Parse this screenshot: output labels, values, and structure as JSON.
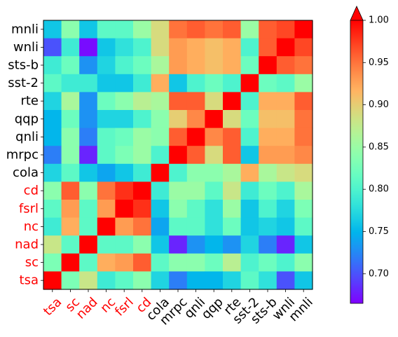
{
  "chart_data": {
    "type": "heatmap",
    "title": "",
    "xlabel": "",
    "ylabel": "",
    "grid": false,
    "x_labels": [
      "tsa",
      "sc",
      "nad",
      "nc",
      "fsrl",
      "cd",
      "cola",
      "mrpc",
      "qnli",
      "qqp",
      "rte",
      "sst-2",
      "sts-b",
      "wnli",
      "mnli"
    ],
    "y_labels": [
      "mnli",
      "wnli",
      "sts-b",
      "sst-2",
      "rte",
      "qqp",
      "qnli",
      "mrpc",
      "cola",
      "cd",
      "fsrl",
      "nc",
      "nad",
      "sc",
      "tsa"
    ],
    "label_colors": {
      "tsa": "#ff0000",
      "sc": "#ff0000",
      "nad": "#ff0000",
      "nc": "#ff0000",
      "fsrl": "#ff0000",
      "cd": "#ff0000",
      "cola": "#000000",
      "mrpc": "#000000",
      "qnli": "#000000",
      "qqp": "#000000",
      "rte": "#000000",
      "sst-2": "#000000",
      "sts-b": "#000000",
      "wnli": "#000000",
      "mnli": "#000000"
    },
    "values": [
      [
        0.76,
        0.84,
        0.76,
        0.81,
        0.81,
        0.85,
        0.89,
        0.95,
        0.96,
        0.95,
        0.96,
        0.85,
        0.96,
        0.97,
        1.0
      ],
      [
        0.7,
        0.79,
        0.67,
        0.76,
        0.78,
        0.8,
        0.89,
        0.93,
        0.92,
        0.91,
        0.92,
        0.8,
        0.96,
        1.0,
        0.97
      ],
      [
        0.79,
        0.82,
        0.73,
        0.77,
        0.8,
        0.82,
        0.86,
        0.93,
        0.92,
        0.91,
        0.92,
        0.82,
        1.0,
        0.96,
        0.95
      ],
      [
        0.81,
        0.79,
        0.79,
        0.76,
        0.76,
        0.79,
        0.92,
        0.76,
        0.8,
        0.82,
        0.8,
        1.0,
        0.82,
        0.81,
        0.85
      ],
      [
        0.77,
        0.86,
        0.73,
        0.82,
        0.84,
        0.87,
        0.86,
        0.96,
        0.96,
        0.89,
        1.0,
        0.8,
        0.92,
        0.92,
        0.96
      ],
      [
        0.75,
        0.82,
        0.73,
        0.77,
        0.77,
        0.8,
        0.84,
        0.9,
        0.94,
        1.0,
        0.89,
        0.82,
        0.91,
        0.91,
        0.95
      ],
      [
        0.75,
        0.84,
        0.72,
        0.81,
        0.82,
        0.85,
        0.84,
        0.96,
        1.0,
        0.94,
        0.96,
        0.8,
        0.92,
        0.92,
        0.95
      ],
      [
        0.72,
        0.84,
        0.68,
        0.81,
        0.83,
        0.85,
        0.8,
        1.0,
        0.96,
        0.89,
        0.96,
        0.76,
        0.93,
        0.93,
        0.94
      ],
      [
        0.77,
        0.81,
        0.76,
        0.74,
        0.76,
        0.79,
        1.0,
        0.8,
        0.84,
        0.84,
        0.86,
        0.92,
        0.86,
        0.88,
        0.89
      ],
      [
        0.84,
        0.96,
        0.84,
        0.95,
        0.98,
        1.0,
        0.79,
        0.85,
        0.85,
        0.81,
        0.88,
        0.79,
        0.82,
        0.8,
        0.86
      ],
      [
        0.81,
        0.93,
        0.81,
        0.93,
        1.0,
        0.98,
        0.76,
        0.84,
        0.81,
        0.78,
        0.85,
        0.76,
        0.8,
        0.77,
        0.83
      ],
      [
        0.79,
        0.92,
        0.81,
        1.0,
        0.93,
        0.95,
        0.74,
        0.81,
        0.81,
        0.78,
        0.82,
        0.76,
        0.77,
        0.76,
        0.81
      ],
      [
        0.88,
        0.81,
        1.0,
        0.81,
        0.81,
        0.84,
        0.76,
        0.68,
        0.73,
        0.75,
        0.73,
        0.77,
        0.72,
        0.68,
        0.76
      ],
      [
        0.83,
        1.0,
        0.81,
        0.92,
        0.93,
        0.96,
        0.81,
        0.84,
        0.84,
        0.82,
        0.87,
        0.8,
        0.82,
        0.8,
        0.84
      ],
      [
        1.0,
        0.83,
        0.88,
        0.79,
        0.81,
        0.84,
        0.77,
        0.72,
        0.75,
        0.75,
        0.77,
        0.81,
        0.78,
        0.7,
        0.76
      ]
    ],
    "colorbar": {
      "min": 0.665,
      "max": 1.0,
      "ticks": [
        "0.70",
        "0.75",
        "0.80",
        "0.85",
        "0.90",
        "0.95",
        "1.00"
      ],
      "extend": "max",
      "colormap": "rainbow"
    }
  }
}
